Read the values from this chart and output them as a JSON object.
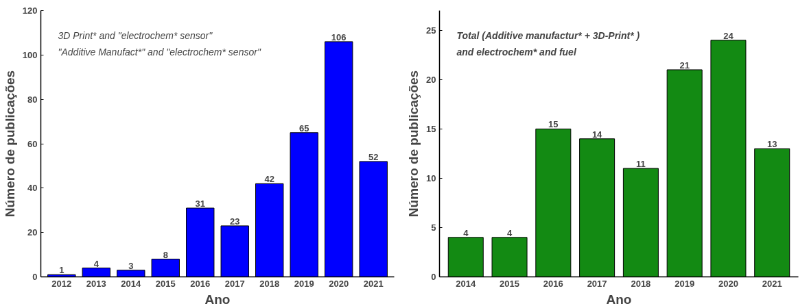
{
  "chart_data": [
    {
      "type": "bar",
      "xlabel": "Ano",
      "ylabel": "Número de publicações",
      "categories": [
        "2012",
        "2013",
        "2014",
        "2015",
        "2016",
        "2017",
        "2018",
        "2019",
        "2020",
        "2021"
      ],
      "series": [
        {
          "color": "#0000ff",
          "values": [
            1,
            4,
            3,
            8,
            31,
            23,
            42,
            65,
            106,
            52
          ]
        }
      ],
      "ylim": [
        0,
        120
      ],
      "yticks": [
        0,
        20,
        40,
        60,
        80,
        100,
        120
      ],
      "data_labels": true,
      "grid": false,
      "annotations": [
        "3D Print* and \"electrochem* sensor\"",
        "\"Additive Manufact*\" and \"electrochem* sensor\""
      ]
    },
    {
      "type": "bar",
      "xlabel": "Ano",
      "ylabel": "Número de publicações",
      "categories": [
        "2014",
        "2015",
        "2016",
        "2017",
        "2018",
        "2019",
        "2020",
        "2021"
      ],
      "series": [
        {
          "color": "#138a13",
          "values": [
            4,
            4,
            15,
            14,
            11,
            21,
            24,
            13
          ]
        }
      ],
      "ylim": [
        0,
        27
      ],
      "yticks": [
        0,
        5,
        10,
        15,
        20,
        25
      ],
      "data_labels": true,
      "grid": false,
      "annotations": [
        "Total (Additive manufactur* + 3D-Print* )",
        "and electrochem* and fuel"
      ]
    }
  ]
}
